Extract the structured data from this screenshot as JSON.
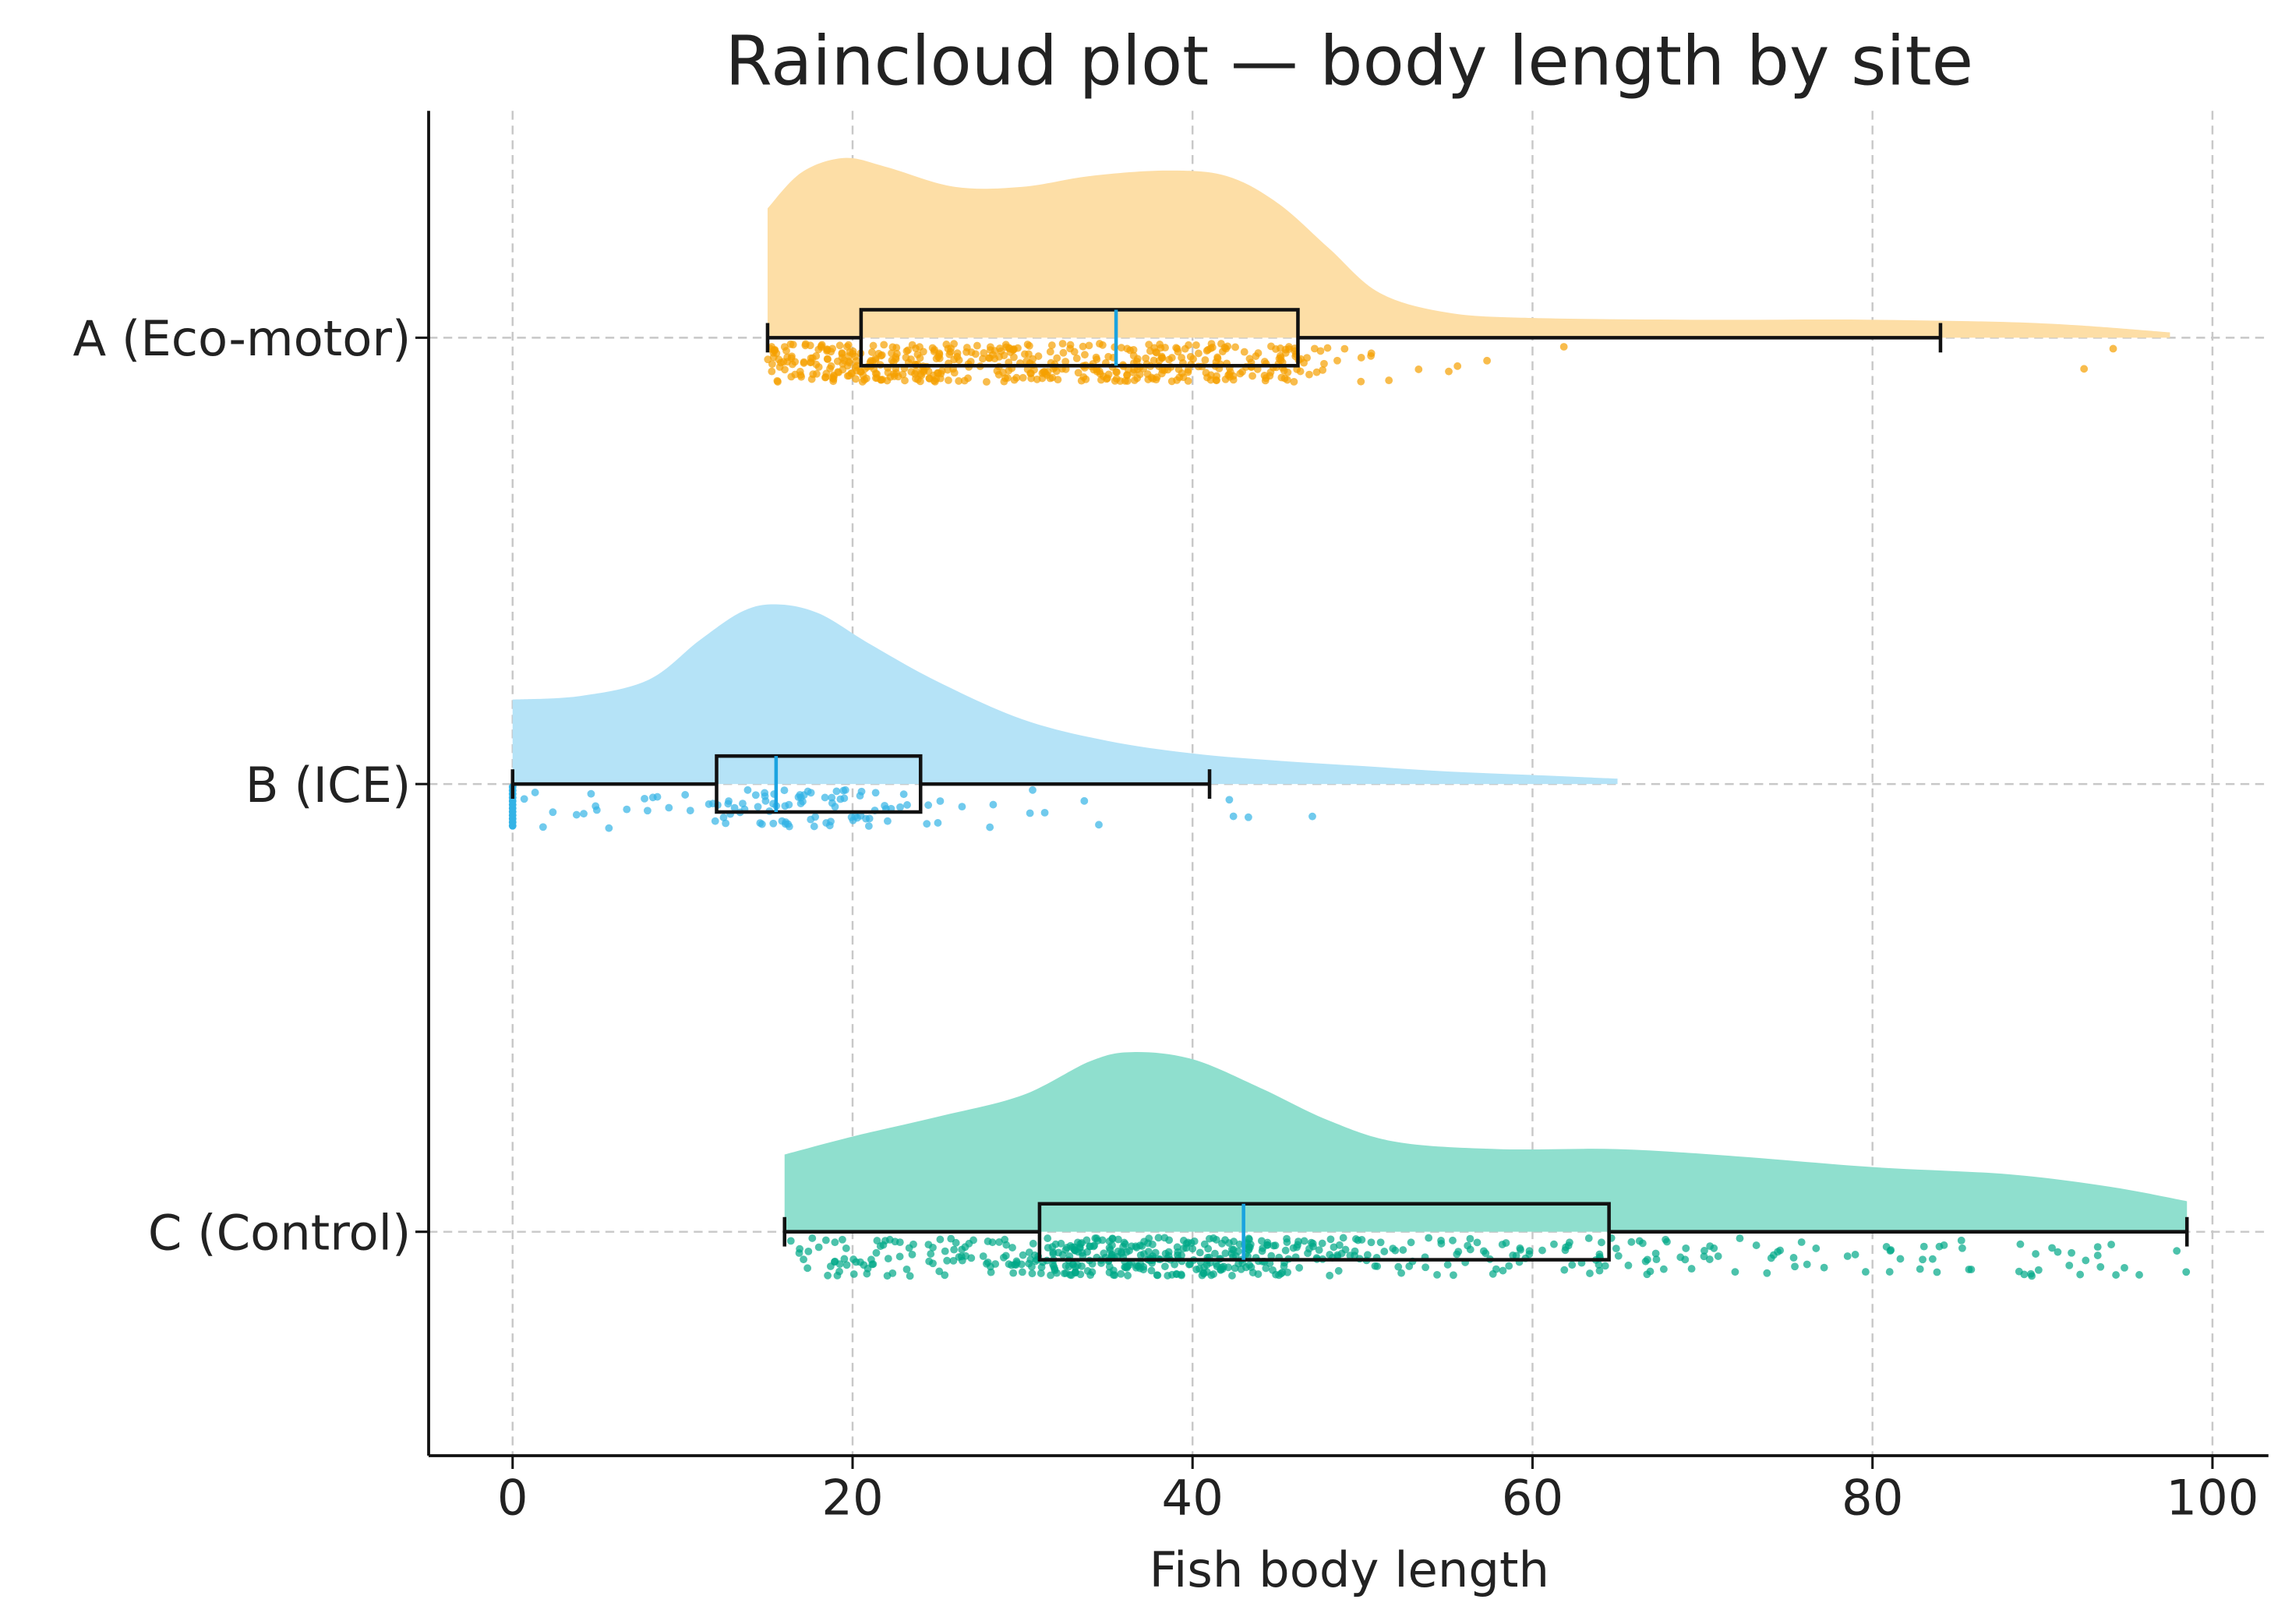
{
  "chart_data": {
    "type": "raincloud",
    "title": "Raincloud plot — body length by site",
    "xlabel": "Fish body length",
    "ylabel": "",
    "xlim": [
      -5,
      103
    ],
    "xticks": [
      0,
      20,
      40,
      60,
      80,
      100
    ],
    "xtick_labels": [
      "0",
      "20",
      "40",
      "60",
      "80",
      "100"
    ],
    "grid": true,
    "median_color": "#1aa3e0",
    "series": [
      {
        "name": "A (Eco-motor)",
        "color": "#f5a000",
        "cloud_color": "#fddea6",
        "box": {
          "whislo": 15,
          "q1": 20.5,
          "med": 35.5,
          "q3": 46.2,
          "whishi": 84
        },
        "kde": [
          [
            15,
            0.72
          ],
          [
            17,
            0.92
          ],
          [
            19.5,
            1.0
          ],
          [
            22,
            0.95
          ],
          [
            26,
            0.84
          ],
          [
            30,
            0.84
          ],
          [
            34,
            0.9
          ],
          [
            38.5,
            0.93
          ],
          [
            42,
            0.9
          ],
          [
            45,
            0.75
          ],
          [
            48,
            0.5
          ],
          [
            51,
            0.25
          ],
          [
            55,
            0.14
          ],
          [
            60,
            0.11
          ],
          [
            70,
            0.1
          ],
          [
            80,
            0.1
          ],
          [
            90,
            0.08
          ],
          [
            97.5,
            0.03
          ]
        ],
        "point_range": [
          15,
          97.5
        ],
        "n_points": 520
      },
      {
        "name": "B (ICE)",
        "color": "#33b3e6",
        "cloud_color": "#b5e3f7",
        "box": {
          "whislo": 0,
          "q1": 12,
          "med": 15.5,
          "q3": 24,
          "whishi": 41
        },
        "kde": [
          [
            0,
            0.47
          ],
          [
            4,
            0.49
          ],
          [
            8,
            0.58
          ],
          [
            11,
            0.8
          ],
          [
            13.5,
            0.96
          ],
          [
            15.5,
            1.0
          ],
          [
            18,
            0.95
          ],
          [
            21,
            0.78
          ],
          [
            25,
            0.57
          ],
          [
            30,
            0.36
          ],
          [
            35,
            0.24
          ],
          [
            40,
            0.17
          ],
          [
            45,
            0.13
          ],
          [
            50,
            0.1
          ],
          [
            55,
            0.07
          ],
          [
            60,
            0.05
          ],
          [
            65,
            0.03
          ]
        ],
        "point_range": [
          0,
          65
        ],
        "n_points": 110
      },
      {
        "name": "C (Control)",
        "color": "#00a887",
        "cloud_color": "#8fdfce",
        "box": {
          "whislo": 16,
          "q1": 31,
          "med": 43,
          "q3": 64.5,
          "whishi": 98.5
        },
        "kde": [
          [
            16,
            0.43
          ],
          [
            20,
            0.53
          ],
          [
            25,
            0.64
          ],
          [
            30,
            0.76
          ],
          [
            34,
            0.95
          ],
          [
            36.5,
            1.0
          ],
          [
            40,
            0.96
          ],
          [
            44,
            0.8
          ],
          [
            48,
            0.62
          ],
          [
            52,
            0.5
          ],
          [
            58,
            0.46
          ],
          [
            65,
            0.46
          ],
          [
            72,
            0.42
          ],
          [
            80,
            0.36
          ],
          [
            88,
            0.32
          ],
          [
            94,
            0.25
          ],
          [
            98.5,
            0.17
          ]
        ],
        "point_range": [
          16,
          98.5
        ],
        "n_points": 560
      }
    ]
  }
}
